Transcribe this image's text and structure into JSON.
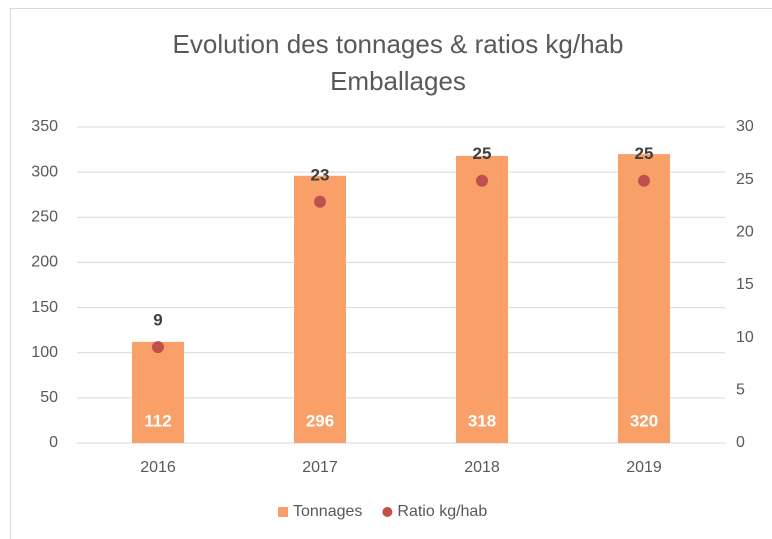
{
  "chart_data": {
    "type": "bar",
    "title": "Evolution des tonnages & ratios kg/hab",
    "subtitle": "Emballages",
    "categories": [
      "2016",
      "2017",
      "2018",
      "2019"
    ],
    "series": [
      {
        "name": "Tonnages",
        "color": "#f8a067",
        "values": [
          112,
          296,
          318,
          320
        ]
      },
      {
        "name": "Ratio kg/hab",
        "color": "#c0504d",
        "axis": "y2",
        "type": "scatter",
        "values": [
          9.1,
          22.9,
          24.9,
          24.9
        ],
        "value_labels": [
          "9",
          "23",
          "25",
          "25"
        ]
      }
    ],
    "ylim": [
      0,
      350
    ],
    "yticks": [
      0,
      50,
      100,
      150,
      200,
      250,
      300,
      350
    ],
    "y2lim": [
      0,
      30
    ],
    "y2ticks": [
      0,
      5,
      10,
      15,
      20,
      25,
      30
    ],
    "grid": true,
    "legend": "bottom"
  }
}
